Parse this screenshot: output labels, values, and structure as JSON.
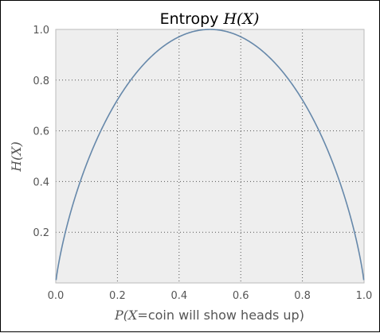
{
  "chart_data": {
    "type": "line",
    "title": {
      "prefix": "Entropy ",
      "math": "H(X)"
    },
    "xlabel": {
      "math": "P(X=",
      "text": "coin will show heads up",
      "suffix": ")"
    },
    "ylabel": "H(X)",
    "xlim": [
      0.0,
      1.0
    ],
    "ylim": [
      0.0,
      1.0
    ],
    "x_ticks": [
      "0.0",
      "0.2",
      "0.4",
      "0.6",
      "0.8",
      "1.0"
    ],
    "y_ticks": [
      "0.2",
      "0.4",
      "0.6",
      "0.8",
      "1.0"
    ],
    "grid": true,
    "grid_style": "dotted",
    "series": [
      {
        "function": "binary entropy -p*log2(p) - (1-p)*log2(1-p)",
        "x": [
          0.01,
          0.05,
          0.1,
          0.15,
          0.2,
          0.25,
          0.3,
          0.35,
          0.4,
          0.45,
          0.5,
          0.55,
          0.6,
          0.65,
          0.7,
          0.75,
          0.8,
          0.85,
          0.9,
          0.95,
          0.99
        ],
        "y": [
          0.081,
          0.286,
          0.469,
          0.61,
          0.722,
          0.811,
          0.881,
          0.934,
          0.971,
          0.993,
          1.0,
          0.993,
          0.971,
          0.934,
          0.881,
          0.811,
          0.722,
          0.61,
          0.469,
          0.286,
          0.081
        ]
      }
    ],
    "colors": {
      "plot_background": "#eeeeee",
      "line": "#6688aa",
      "grid": "#555555",
      "spine": "#bbbbbb"
    }
  }
}
